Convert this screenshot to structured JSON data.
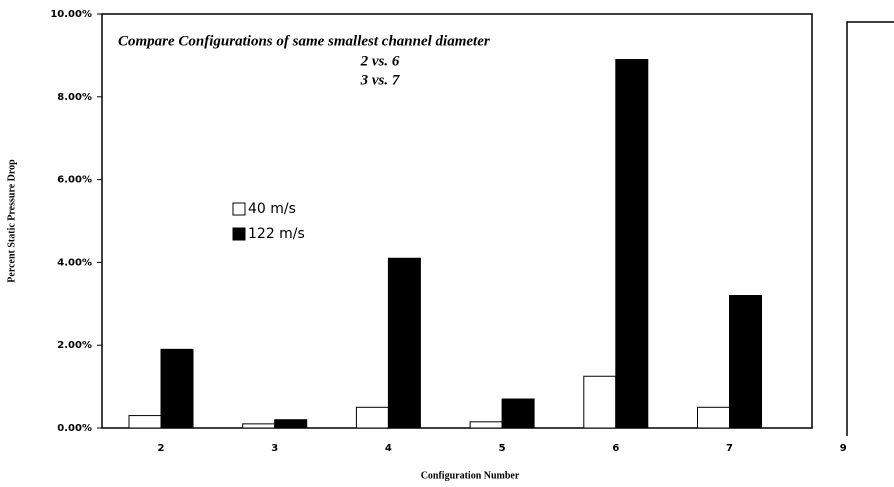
{
  "chart_data": {
    "type": "bar",
    "annotations": [
      "Compare Configurations of same smallest channel diameter",
      "2 vs. 6",
      "3 vs. 7"
    ],
    "x_label": "Configuration Number",
    "y_label": "Percent Static Pressure Drop",
    "categories": [
      "2",
      "3",
      "4",
      "5",
      "6",
      "7",
      "9"
    ],
    "series": [
      {
        "name": "40 m/s",
        "color": "#ffffff",
        "values": [
          0.3,
          0.1,
          0.5,
          0.15,
          1.25,
          0.5,
          null
        ]
      },
      {
        "name": "122 m/s",
        "color": "#000000",
        "values": [
          1.9,
          0.2,
          4.1,
          0.7,
          8.9,
          3.2,
          null
        ]
      }
    ],
    "ylim": [
      0,
      10
    ],
    "yticks": [
      {
        "value": 0,
        "label": "0.00%"
      },
      {
        "value": 2,
        "label": "2.00%"
      },
      {
        "value": 4,
        "label": "4.00%"
      },
      {
        "value": 6,
        "label": "6.00%"
      },
      {
        "value": 8,
        "label": "8.00%"
      },
      {
        "value": 10,
        "label": "10.00%"
      }
    ]
  }
}
